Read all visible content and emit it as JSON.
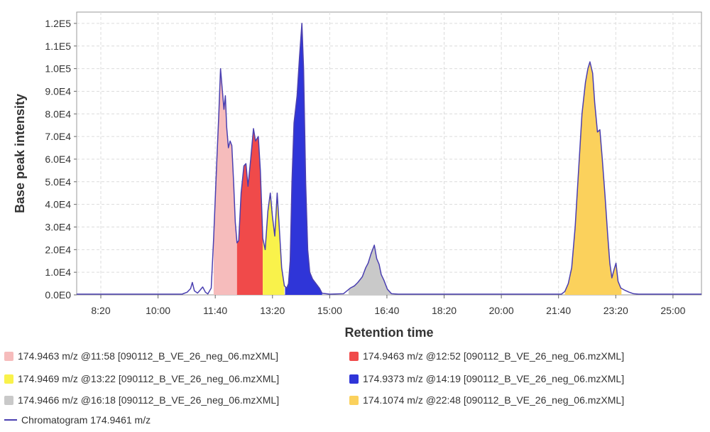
{
  "chart_data": {
    "type": "area",
    "xlabel": "Retention time",
    "ylabel": "Base peak intensity",
    "x_ticks": [
      "8:20",
      "10:00",
      "11:40",
      "13:20",
      "15:00",
      "16:40",
      "18:20",
      "20:00",
      "21:40",
      "23:20",
      "25:00"
    ],
    "y_ticks": [
      "0.0E0",
      "1.0E4",
      "2.0E4",
      "3.0E4",
      "4.0E4",
      "5.0E4",
      "6.0E4",
      "7.0E4",
      "8.0E4",
      "9.0E4",
      "1.0E5",
      "1.1E5",
      "1.2E5"
    ],
    "xlim_minutes": [
      7.63,
      25.83
    ],
    "ylim": [
      0,
      125000
    ],
    "grid": true,
    "legend_position": "bottom",
    "chromatogram": {
      "name": "Chromatogram 174.9461 m/z",
      "color": "#4a3fb0",
      "points": [
        [
          7.63,
          300
        ],
        [
          10.7,
          300
        ],
        [
          10.85,
          1200
        ],
        [
          10.95,
          2800
        ],
        [
          11.0,
          5500
        ],
        [
          11.06,
          1800
        ],
        [
          11.15,
          800
        ],
        [
          11.22,
          2000
        ],
        [
          11.3,
          3500
        ],
        [
          11.38,
          1200
        ],
        [
          11.45,
          400
        ],
        [
          11.55,
          3000
        ],
        [
          11.62,
          25000
        ],
        [
          11.7,
          55000
        ],
        [
          11.77,
          80000
        ],
        [
          11.82,
          100000
        ],
        [
          11.87,
          91000
        ],
        [
          11.92,
          82000
        ],
        [
          11.96,
          88000
        ],
        [
          12.0,
          74000
        ],
        [
          12.05,
          65000
        ],
        [
          12.1,
          68000
        ],
        [
          12.15,
          66000
        ],
        [
          12.2,
          50000
        ],
        [
          12.25,
          32000
        ],
        [
          12.3,
          23000
        ],
        [
          12.35,
          24000
        ],
        [
          12.42,
          45000
        ],
        [
          12.5,
          57000
        ],
        [
          12.56,
          58000
        ],
        [
          12.62,
          48000
        ],
        [
          12.7,
          60000
        ],
        [
          12.78,
          73500
        ],
        [
          12.84,
          68000
        ],
        [
          12.92,
          70000
        ],
        [
          12.98,
          55000
        ],
        [
          13.05,
          25000
        ],
        [
          13.12,
          20000
        ],
        [
          13.2,
          37000
        ],
        [
          13.27,
          45000
        ],
        [
          13.33,
          35000
        ],
        [
          13.4,
          26000
        ],
        [
          13.47,
          45000
        ],
        [
          13.53,
          30000
        ],
        [
          13.6,
          12000
        ],
        [
          13.68,
          4000
        ],
        [
          13.75,
          3000
        ],
        [
          13.8,
          5000
        ],
        [
          13.85,
          15000
        ],
        [
          13.9,
          50000
        ],
        [
          13.96,
          76000
        ],
        [
          14.05,
          88000
        ],
        [
          14.12,
          105000
        ],
        [
          14.19,
          120000
        ],
        [
          14.24,
          100000
        ],
        [
          14.3,
          50000
        ],
        [
          14.36,
          20000
        ],
        [
          14.42,
          10000
        ],
        [
          14.5,
          7000
        ],
        [
          14.6,
          5000
        ],
        [
          14.7,
          3000
        ],
        [
          14.78,
          700
        ],
        [
          15.0,
          300
        ],
        [
          15.4,
          500
        ],
        [
          15.6,
          3000
        ],
        [
          15.72,
          4000
        ],
        [
          15.82,
          5500
        ],
        [
          15.95,
          8000
        ],
        [
          16.05,
          12000
        ],
        [
          16.12,
          14000
        ],
        [
          16.2,
          18000
        ],
        [
          16.3,
          22000
        ],
        [
          16.37,
          16000
        ],
        [
          16.44,
          13500
        ],
        [
          16.5,
          9000
        ],
        [
          16.58,
          6500
        ],
        [
          16.68,
          2500
        ],
        [
          16.8,
          500
        ],
        [
          17.0,
          300
        ],
        [
          21.75,
          300
        ],
        [
          21.85,
          1500
        ],
        [
          21.95,
          5000
        ],
        [
          22.05,
          12000
        ],
        [
          22.15,
          30000
        ],
        [
          22.25,
          55000
        ],
        [
          22.35,
          80000
        ],
        [
          22.45,
          94000
        ],
        [
          22.52,
          100000
        ],
        [
          22.58,
          103000
        ],
        [
          22.66,
          98000
        ],
        [
          22.72,
          85000
        ],
        [
          22.8,
          72000
        ],
        [
          22.87,
          73000
        ],
        [
          22.94,
          60000
        ],
        [
          23.02,
          44000
        ],
        [
          23.1,
          26000
        ],
        [
          23.16,
          14000
        ],
        [
          23.22,
          7500
        ],
        [
          23.28,
          11000
        ],
        [
          23.34,
          14000
        ],
        [
          23.4,
          6000
        ],
        [
          23.48,
          3000
        ],
        [
          23.6,
          2000
        ],
        [
          23.72,
          1200
        ],
        [
          23.85,
          500
        ],
        [
          24.0,
          300
        ],
        [
          25.83,
          300
        ]
      ]
    },
    "peaks": [
      {
        "name": "174.9463 m/z @11:58 [090112_B_VE_26_neg_06.mzXML]",
        "color": "#f6bcbc",
        "range_minutes": [
          11.62,
          12.3
        ]
      },
      {
        "name": "174.9463 m/z @12:52 [090112_B_VE_26_neg_06.mzXML]",
        "color": "#f04a4a",
        "range_minutes": [
          12.3,
          13.05
        ]
      },
      {
        "name": "174.9469 m/z @13:22 [090112_B_VE_26_neg_06.mzXML]",
        "color": "#f9f24b",
        "range_minutes": [
          13.05,
          13.68
        ]
      },
      {
        "name": "174.9373 m/z @14:19 [090112_B_VE_26_neg_06.mzXML]",
        "color": "#2f35d8",
        "range_minutes": [
          13.7,
          14.78
        ]
      },
      {
        "name": "174.9466 m/z @16:18 [090112_B_VE_26_neg_06.mzXML]",
        "color": "#c9c9c9",
        "range_minutes": [
          15.55,
          16.8
        ]
      },
      {
        "name": "174.1074 m/z @22:48 [090112_B_VE_26_neg_06.mzXML]",
        "color": "#fbd15c",
        "range_minutes": [
          21.85,
          23.5
        ]
      }
    ]
  }
}
